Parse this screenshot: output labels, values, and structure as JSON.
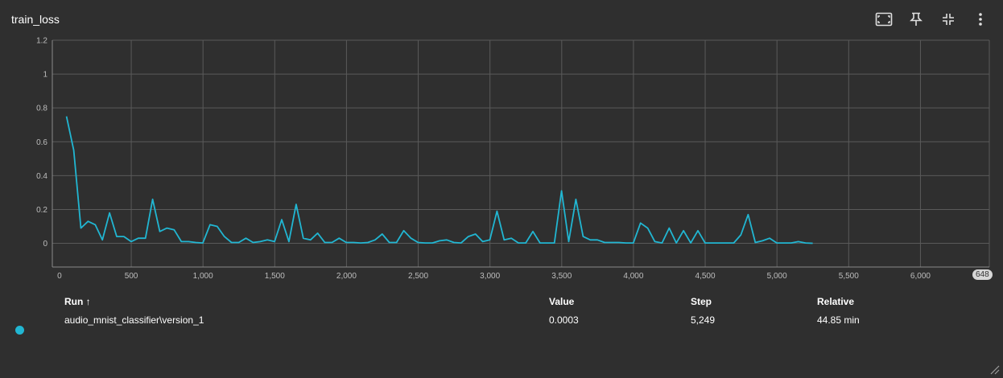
{
  "card": {
    "title": "train_loss",
    "toolbar": [
      {
        "name": "fit-domain-icon"
      },
      {
        "name": "pin-icon"
      },
      {
        "name": "collapse-icon"
      },
      {
        "name": "more-vert-icon"
      }
    ]
  },
  "colors": {
    "series": "#21b6d2",
    "grid": "#5a5a5a",
    "axis": "#bdbdbd"
  },
  "chart_data": {
    "type": "line",
    "title": "train_loss",
    "xlabel": "",
    "ylabel": "",
    "xlim": [
      -50,
      6480
    ],
    "ylim": [
      -0.14,
      1.2
    ],
    "x_ticks": [
      0,
      500,
      1000,
      1500,
      2000,
      2500,
      3000,
      3500,
      4000,
      4500,
      5000,
      5500,
      6000
    ],
    "x_tick_labels": [
      "0",
      "500",
      "1,000",
      "1,500",
      "2,000",
      "2,500",
      "3,000",
      "3,500",
      "4,000",
      "4,500",
      "5,000",
      "5,500",
      "6,000"
    ],
    "y_ticks": [
      0,
      0.2,
      0.4,
      0.6,
      0.8,
      1,
      1.2
    ],
    "y_tick_labels": [
      "0",
      "0.2",
      "0.4",
      "0.6",
      "0.8",
      "1",
      "1.2"
    ],
    "grid": true,
    "edge_label": "648",
    "series": [
      {
        "name": "audio_mnist_classifier\\version_1",
        "x": [
          49,
          99,
          149,
          199,
          249,
          299,
          349,
          399,
          449,
          499,
          549,
          599,
          649,
          699,
          749,
          799,
          849,
          899,
          949,
          999,
          1049,
          1099,
          1149,
          1199,
          1249,
          1299,
          1349,
          1399,
          1449,
          1499,
          1549,
          1599,
          1649,
          1699,
          1749,
          1799,
          1849,
          1899,
          1949,
          1999,
          2049,
          2099,
          2149,
          2199,
          2249,
          2299,
          2349,
          2399,
          2449,
          2499,
          2549,
          2599,
          2649,
          2699,
          2749,
          2799,
          2849,
          2899,
          2949,
          2999,
          3049,
          3099,
          3149,
          3199,
          3249,
          3299,
          3349,
          3399,
          3449,
          3499,
          3549,
          3599,
          3649,
          3699,
          3749,
          3799,
          3849,
          3899,
          3949,
          3999,
          4049,
          4099,
          4149,
          4199,
          4249,
          4299,
          4349,
          4399,
          4449,
          4499,
          4549,
          4599,
          4649,
          4699,
          4749,
          4799,
          4849,
          4899,
          4949,
          4999,
          5049,
          5099,
          5149,
          5199,
          5249
        ],
        "y": [
          0.75,
          0.55,
          0.09,
          0.13,
          0.11,
          0.02,
          0.18,
          0.04,
          0.04,
          0.01,
          0.03,
          0.03,
          0.26,
          0.07,
          0.09,
          0.08,
          0.01,
          0.01,
          0.005,
          0.002,
          0.11,
          0.1,
          0.04,
          0.005,
          0.005,
          0.03,
          0.005,
          0.01,
          0.02,
          0.01,
          0.14,
          0.01,
          0.23,
          0.03,
          0.02,
          0.06,
          0.005,
          0.005,
          0.03,
          0.005,
          0.005,
          0.002,
          0.005,
          0.02,
          0.055,
          0.005,
          0.005,
          0.075,
          0.03,
          0.005,
          0.002,
          0.002,
          0.015,
          0.02,
          0.005,
          0.002,
          0.04,
          0.055,
          0.01,
          0.02,
          0.19,
          0.02,
          0.03,
          0.002,
          0.002,
          0.07,
          0.002,
          0.002,
          0.002,
          0.31,
          0.01,
          0.26,
          0.04,
          0.02,
          0.02,
          0.005,
          0.005,
          0.005,
          0.002,
          0.002,
          0.12,
          0.09,
          0.01,
          0.002,
          0.09,
          0.002,
          0.075,
          0.002,
          0.075,
          0.002,
          0.002,
          0.002,
          0.002,
          0.002,
          0.05,
          0.17,
          0.005,
          0.015,
          0.03,
          0.002,
          0.002,
          0.002,
          0.01,
          0.002,
          0.0003
        ]
      }
    ]
  },
  "table": {
    "headers": {
      "run": "Run ↑",
      "value": "Value",
      "step": "Step",
      "relative": "Relative"
    },
    "rows": [
      {
        "run": "audio_mnist_classifier\\version_1",
        "value": "0.0003",
        "step": "5,249",
        "relative": "44.85 min"
      }
    ]
  }
}
